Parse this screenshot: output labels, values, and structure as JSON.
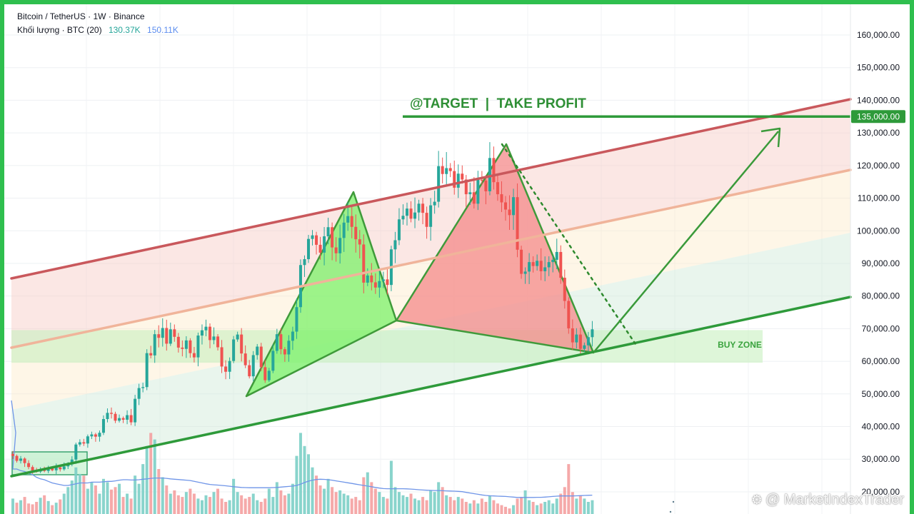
{
  "header": {
    "symbol_line": "Bitcoin / TetherUS · 1W · Binance",
    "volume_label": "Khối lượng · BTC (20)",
    "volume_value_1": "130.37K",
    "volume_value_2": "150.11K"
  },
  "watermark": "@ MarketIndexTrader",
  "annotations": {
    "target_label": "@TARGET  |  TAKE PROFIT",
    "buy_zone_label": "BUY ZONE",
    "target_price_badge": "135,000.00"
  },
  "colors": {
    "frame": "#2fbf4e",
    "up": "#26a69a",
    "down": "#ef5350",
    "channel_top": "#c9585c",
    "channel_mid": "#f0b49a",
    "channel_bottom": "#2e9a3a",
    "target_line": "#2e9a3a",
    "bull_triangle": "#7cf26a",
    "bear_triangle": "#f48a8a",
    "buy_zone": "#c8f0c0",
    "volume_ma": "#6f95e8"
  },
  "chart_data": {
    "type": "candlestick",
    "title": "Bitcoin / TetherUS · 1W · Binance",
    "y_scale": "linear",
    "ylim": [
      16000,
      163000
    ],
    "y_ticks": [
      "160,000.00",
      "150,000.00",
      "140,000.00",
      "130,000.00",
      "120,000.00",
      "110,000.00",
      "100,000.00",
      "90,000.00",
      "80,000.00",
      "70,000.00",
      "60,000.00",
      "50,000.00",
      "40,000.00",
      "30,000.00",
      "20,000.00"
    ],
    "y_tick_values": [
      160000,
      150000,
      140000,
      130000,
      120000,
      110000,
      100000,
      90000,
      80000,
      70000,
      60000,
      50000,
      40000,
      30000,
      20000
    ],
    "grid": true,
    "weekly_closes": [
      31000,
      29500,
      30200,
      28800,
      27600,
      26500,
      26200,
      26800,
      26400,
      27200,
      26600,
      27500,
      26900,
      27800,
      28400,
      29900,
      34500,
      35200,
      34800,
      37000,
      37600,
      36900,
      38100,
      42300,
      44200,
      43900,
      41800,
      42600,
      42100,
      43500,
      41300,
      48500,
      51800,
      52100,
      62500,
      61800,
      68300,
      67200,
      70200,
      65400,
      69800,
      67500,
      64200,
      63800,
      66400,
      62500,
      61200,
      67900,
      69500,
      70600,
      66500,
      67600,
      64300,
      58400,
      56800,
      60100,
      66700,
      68200,
      62400,
      58800,
      55400,
      61900,
      64500,
      58200,
      54200,
      57100,
      63200,
      68300,
      63700,
      62100,
      66300,
      69100,
      76600,
      89500,
      91300,
      97500,
      98600,
      95700,
      93300,
      98300,
      101100,
      94900,
      93100,
      97800,
      102500,
      104500,
      101200,
      97400,
      95800,
      84100,
      86300,
      84200,
      82600,
      84600,
      85100,
      83400,
      94300,
      97100,
      103500,
      104600,
      106800,
      103700,
      105600,
      108300,
      105500,
      101200,
      107800,
      108900,
      119800,
      117400,
      119200,
      118300,
      113200,
      117500,
      115700,
      111200,
      111800,
      108300,
      115600,
      115400,
      112100,
      122300,
      114900,
      111200,
      108700,
      106500,
      104800,
      110300,
      94200,
      86800,
      87500,
      90400,
      89200,
      90800,
      87600,
      88800,
      90400,
      91100,
      93500,
      85600,
      78500,
      70100,
      65800,
      68200,
      63800,
      64900,
      67400,
      69800
    ],
    "volume_series": {
      "name": "Khối lượng · BTC (20)",
      "values": [
        120,
        95,
        110,
        130,
        90,
        85,
        100,
        125,
        140,
        105,
        80,
        95,
        115,
        150,
        190,
        230,
        310,
        270,
        260,
        180,
        220,
        200,
        150,
        240,
        220,
        175,
        190,
        210,
        130,
        150,
        120,
        260,
        210,
        330,
        440,
        520,
        480,
        300,
        250,
        200,
        150,
        170,
        140,
        130,
        160,
        180,
        150,
        120,
        110,
        140,
        130,
        160,
        180,
        120,
        100,
        110,
        240,
        160,
        140,
        120,
        130,
        150,
        110,
        100,
        120,
        180,
        130,
        220,
        170,
        140,
        150,
        210,
        380,
        520,
        440,
        390,
        310,
        260,
        200,
        180,
        240,
        190,
        160,
        170,
        150,
        140,
        120,
        130,
        110,
        250,
        280,
        220,
        180,
        160,
        130,
        120,
        350,
        190,
        160,
        140,
        130,
        150,
        120,
        110,
        130,
        110,
        170,
        160,
        220,
        190,
        140,
        130,
        110,
        130,
        120,
        100,
        90,
        110,
        90,
        120,
        100,
        140,
        110,
        90,
        80,
        70,
        60,
        80,
        120,
        130,
        170,
        110,
        100,
        80,
        90,
        100,
        110,
        90,
        120,
        150,
        190,
        330,
        160,
        120,
        140,
        120,
        100,
        110
      ],
      "ma_values": [
        300,
        300,
        290,
        285,
        275,
        265,
        250,
        240,
        235,
        225,
        215,
        210,
        205,
        200,
        200,
        205,
        210,
        215,
        215,
        215,
        220,
        220,
        220,
        222,
        225,
        225,
        228,
        232,
        235,
        235,
        233,
        233,
        235,
        238,
        240,
        243,
        245,
        245,
        245,
        243,
        240,
        238,
        236,
        234,
        232,
        230,
        225,
        220,
        215,
        210,
        206,
        204,
        202,
        200,
        198,
        195,
        192,
        190,
        188,
        187,
        186,
        186,
        186,
        186,
        186,
        186,
        187,
        188,
        190,
        192,
        194,
        196,
        200,
        208,
        218,
        226,
        232,
        236,
        238,
        237,
        235,
        232,
        228,
        224,
        220,
        216,
        212,
        208,
        204,
        200,
        196,
        192,
        188,
        184,
        181,
        180,
        180,
        180,
        180,
        180,
        179,
        178,
        176,
        174,
        172,
        171,
        170,
        169,
        169,
        168,
        167,
        166,
        165,
        164,
        162,
        158,
        154,
        150,
        146,
        142,
        139,
        137,
        136,
        135,
        134,
        133,
        131,
        129,
        127,
        127,
        127,
        127,
        127,
        128,
        128,
        129,
        131,
        133,
        135,
        136,
        136,
        136,
        136,
        137,
        138,
        139,
        140,
        141
      ]
    },
    "drawings": {
      "target_level": 135000,
      "buy_zone_range": [
        60000,
        70000
      ]
    }
  }
}
